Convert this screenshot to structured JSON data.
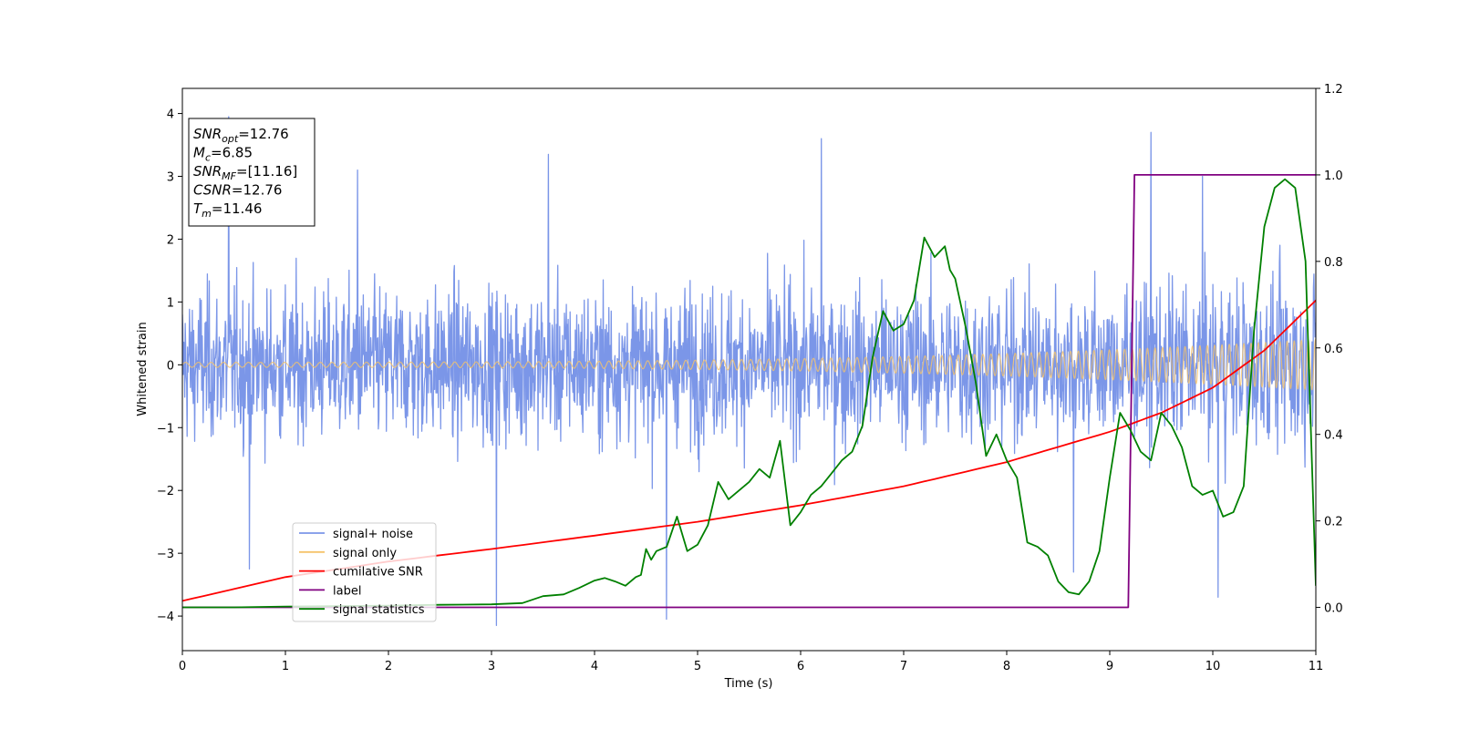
{
  "chart_data": {
    "type": "line",
    "xlabel": "Time (s)",
    "ylabel": "Whitened strain",
    "xlim": [
      0,
      11
    ],
    "ylim": [
      -4.55,
      4.4
    ],
    "y2lim": [
      -0.1,
      1.2
    ],
    "x_ticks": [
      0,
      1,
      2,
      3,
      4,
      5,
      6,
      7,
      8,
      9,
      10,
      11
    ],
    "y_ticks": [
      4,
      3,
      2,
      1,
      0,
      -1,
      -2,
      -3,
      -4
    ],
    "y2_ticks": [
      1.2,
      1.0,
      0.8,
      0.6,
      0.4,
      0.2,
      0.0
    ],
    "x_tick_labels": [
      "0",
      "1",
      "2",
      "3",
      "4",
      "5",
      "6",
      "7",
      "8",
      "9",
      "10",
      "11"
    ],
    "y_tick_labels": [
      "4",
      "3",
      "2",
      "1",
      "0",
      "−1",
      "−2",
      "−3",
      "−4"
    ],
    "y2_tick_labels": [
      "1.2",
      "1.0",
      "0.8",
      "0.6",
      "0.4",
      "0.2",
      "0.0"
    ],
    "grid": false,
    "legend_position": "lower-left",
    "legend": [
      {
        "label": "signal+ noise",
        "color": "#7b96e8"
      },
      {
        "label": "signal only",
        "color": "#f5c36a"
      },
      {
        "label": "cumilative SNR",
        "color": "#ff0000"
      },
      {
        "label": "label",
        "color": "#800080"
      },
      {
        "label": "signal statistics",
        "color": "#008000"
      }
    ],
    "annotation": [
      {
        "name": "SNR",
        "sub": "opt",
        "value": "=12.76"
      },
      {
        "name": "M",
        "sub": "c",
        "value": "=6.85"
      },
      {
        "name": "SNR",
        "sub": "MF",
        "value": "=[11.16]"
      },
      {
        "name": "CSNR",
        "sub": "",
        "value": "=12.76"
      },
      {
        "name": "T",
        "sub": "m",
        "value": "=11.46"
      }
    ],
    "series": [
      {
        "name": "signal+ noise",
        "axis": "left",
        "color": "#7b96e8",
        "description": "noisy whitened strain, values spread roughly between -3.5 and 4.0, typical range -2 to 2.5",
        "envelope": {
          "typical": 1.9,
          "peaks": [
            [
              0.45,
              3.95
            ],
            [
              1.7,
              3.1
            ],
            [
              3.55,
              3.35
            ],
            [
              6.2,
              3.6
            ],
            [
              9.4,
              3.7
            ],
            [
              9.9,
              3.0
            ],
            [
              0.65,
              -3.25
            ],
            [
              3.05,
              -4.15
            ],
            [
              4.7,
              -4.05
            ],
            [
              10.05,
              -3.7
            ],
            [
              8.65,
              -3.3
            ]
          ]
        }
      },
      {
        "name": "signal only",
        "axis": "left",
        "color": "#f5c36a",
        "description": "chirp signal, amplitude grows from about 0.04 at t=0 to about 0.4 at t=11"
      },
      {
        "name": "cumilative SNR",
        "axis": "right",
        "color": "#ff0000",
        "x": [
          0,
          1,
          2,
          3,
          4,
          5,
          6,
          7,
          8,
          9,
          9.5,
          10,
          10.5,
          11
        ],
        "values": [
          0.015,
          0.07,
          0.106,
          0.135,
          0.166,
          0.198,
          0.236,
          0.28,
          0.336,
          0.406,
          0.45,
          0.508,
          0.594,
          0.71
        ]
      },
      {
        "name": "label",
        "axis": "right",
        "color": "#800080",
        "x": [
          0,
          9.18,
          9.24,
          11
        ],
        "values": [
          0.0,
          0.0,
          1.0,
          1.0
        ]
      },
      {
        "name": "signal statistics",
        "axis": "right",
        "color": "#008000",
        "x": [
          0,
          0.5,
          1,
          1.5,
          2,
          2.5,
          3,
          3.3,
          3.5,
          3.7,
          3.85,
          4.0,
          4.1,
          4.2,
          4.3,
          4.4,
          4.45,
          4.5,
          4.55,
          4.6,
          4.7,
          4.8,
          4.9,
          5.0,
          5.1,
          5.2,
          5.3,
          5.4,
          5.5,
          5.6,
          5.7,
          5.8,
          5.9,
          6.0,
          6.1,
          6.2,
          6.3,
          6.4,
          6.5,
          6.6,
          6.7,
          6.8,
          6.9,
          7.0,
          7.1,
          7.2,
          7.3,
          7.4,
          7.45,
          7.5,
          7.6,
          7.7,
          7.8,
          7.9,
          8.0,
          8.1,
          8.2,
          8.3,
          8.4,
          8.5,
          8.6,
          8.7,
          8.8,
          8.9,
          9.0,
          9.1,
          9.2,
          9.3,
          9.4,
          9.5,
          9.6,
          9.7,
          9.8,
          9.9,
          10.0,
          10.1,
          10.2,
          10.3,
          10.4,
          10.5,
          10.6,
          10.7,
          10.8,
          10.9,
          11.0
        ],
        "values": [
          0.0,
          0.0,
          0.002,
          0.003,
          0.004,
          0.006,
          0.007,
          0.01,
          0.026,
          0.03,
          0.045,
          0.062,
          0.068,
          0.06,
          0.05,
          0.07,
          0.075,
          0.135,
          0.11,
          0.13,
          0.14,
          0.21,
          0.13,
          0.145,
          0.19,
          0.29,
          0.25,
          0.27,
          0.29,
          0.32,
          0.3,
          0.385,
          0.19,
          0.22,
          0.26,
          0.28,
          0.31,
          0.34,
          0.36,
          0.42,
          0.58,
          0.685,
          0.64,
          0.655,
          0.71,
          0.855,
          0.81,
          0.835,
          0.78,
          0.76,
          0.65,
          0.52,
          0.35,
          0.4,
          0.34,
          0.3,
          0.15,
          0.14,
          0.12,
          0.06,
          0.035,
          0.03,
          0.06,
          0.13,
          0.3,
          0.45,
          0.41,
          0.36,
          0.34,
          0.45,
          0.42,
          0.37,
          0.28,
          0.26,
          0.27,
          0.21,
          0.22,
          0.28,
          0.64,
          0.88,
          0.97,
          0.99,
          0.97,
          0.8,
          0.05
        ]
      }
    ]
  }
}
